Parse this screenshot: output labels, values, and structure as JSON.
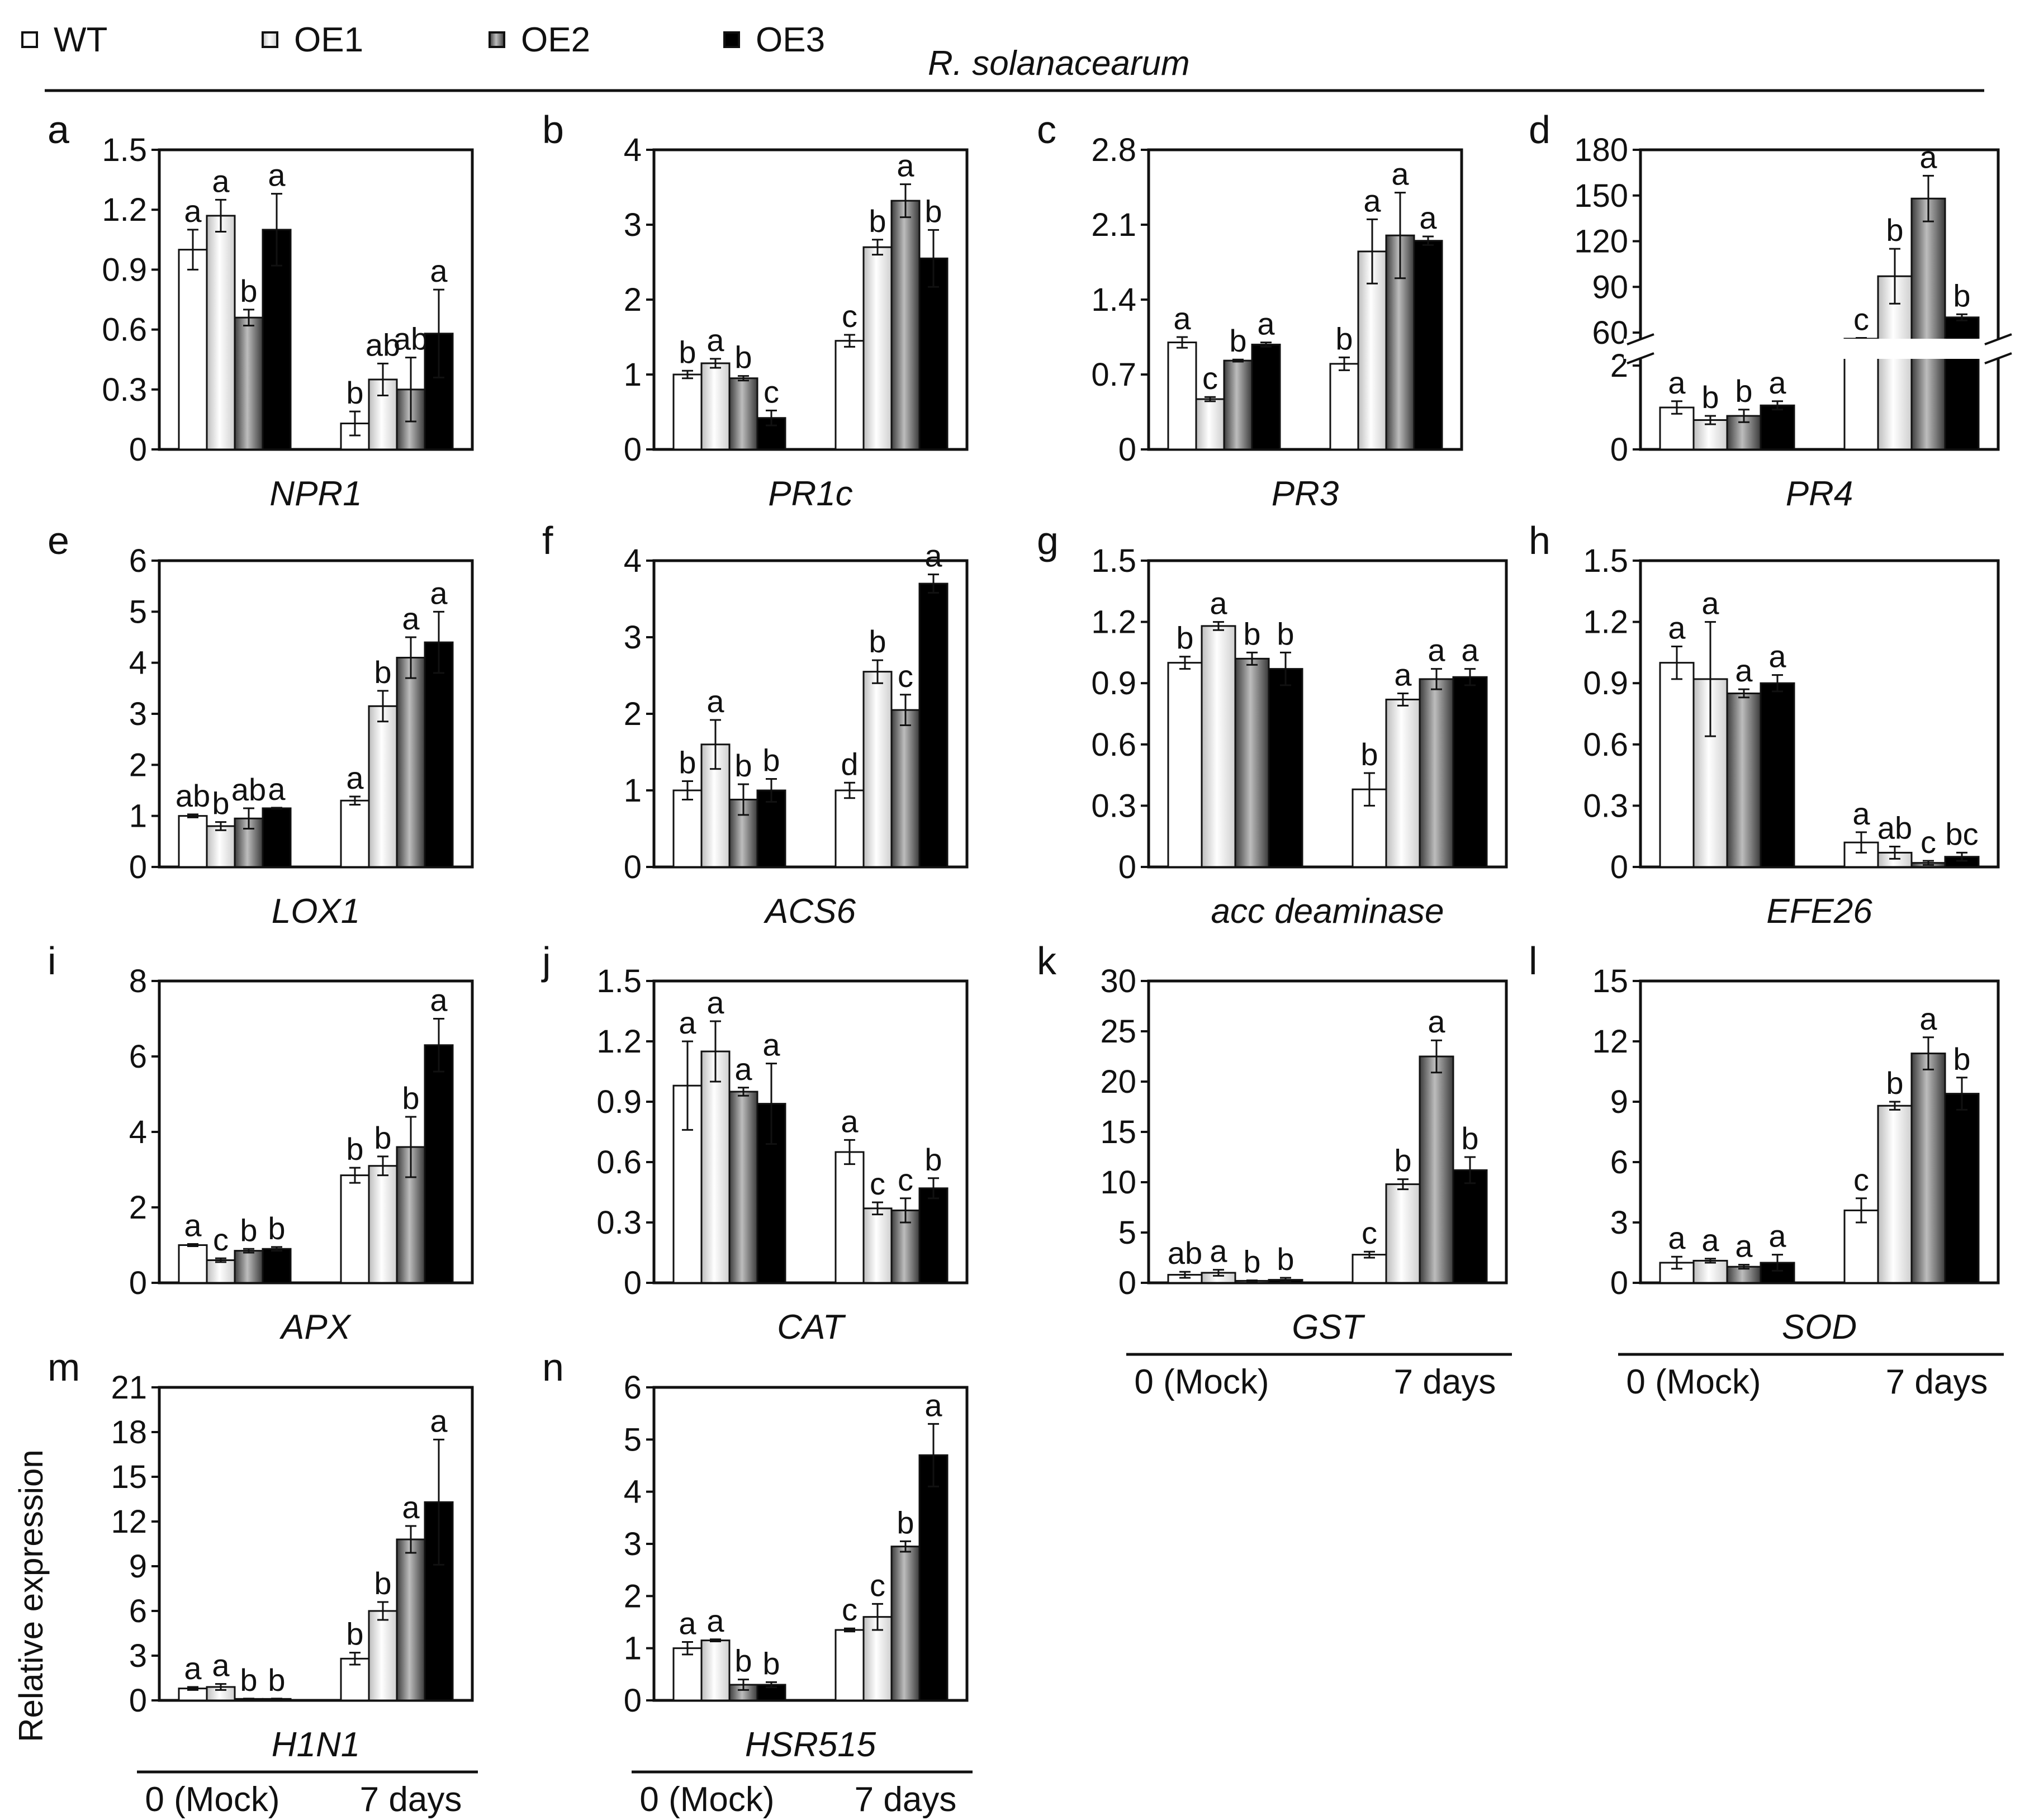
{
  "figure": {
    "pathogen": "R. solanacearum",
    "y_axis_label": "Relative expression",
    "legend": [
      {
        "name": "WT",
        "color": "#ffffff"
      },
      {
        "name": "OE1",
        "color": "#f0f0f0"
      },
      {
        "name": "OE2",
        "color": "#8c8c8c"
      },
      {
        "name": "OE3",
        "color": "#000000"
      }
    ],
    "timepoint_labels": [
      "0 (Mock)",
      "7 days"
    ]
  },
  "chart_data": [
    {
      "type": "bar",
      "panel": "a",
      "gene": "NPR1",
      "categories": [
        "0 (Mock)",
        "7 days"
      ],
      "ylim": [
        0,
        1.5
      ],
      "yticks": [
        "0",
        "0.3",
        "0.6",
        "0.9",
        "1.2",
        "1.5"
      ],
      "show_timepoints": false,
      "series": [
        {
          "name": "WT",
          "values": [
            1.0,
            0.13
          ],
          "errors": [
            0.1,
            0.06
          ],
          "letters": [
            "a",
            "b"
          ]
        },
        {
          "name": "OE1",
          "values": [
            1.17,
            0.35
          ],
          "errors": [
            0.08,
            0.08
          ],
          "letters": [
            "a",
            "ab"
          ]
        },
        {
          "name": "OE2",
          "values": [
            0.66,
            0.3
          ],
          "errors": [
            0.04,
            0.16
          ],
          "letters": [
            "b",
            "ab"
          ]
        },
        {
          "name": "OE3",
          "values": [
            1.1,
            0.58
          ],
          "errors": [
            0.18,
            0.22
          ],
          "letters": [
            "a",
            "a"
          ]
        }
      ]
    },
    {
      "type": "bar",
      "panel": "b",
      "gene": "PR1c",
      "categories": [
        "0 (Mock)",
        "7 days"
      ],
      "ylim": [
        0,
        4
      ],
      "yticks": [
        "0",
        "1",
        "2",
        "3",
        "4"
      ],
      "show_timepoints": false,
      "series": [
        {
          "name": "WT",
          "values": [
            1.0,
            1.45
          ],
          "errors": [
            0.05,
            0.08
          ],
          "letters": [
            "b",
            "c"
          ]
        },
        {
          "name": "OE1",
          "values": [
            1.15,
            2.7
          ],
          "errors": [
            0.06,
            0.1
          ],
          "letters": [
            "a",
            "b"
          ]
        },
        {
          "name": "OE2",
          "values": [
            0.95,
            3.32
          ],
          "errors": [
            0.03,
            0.22
          ],
          "letters": [
            "b",
            "a"
          ]
        },
        {
          "name": "OE3",
          "values": [
            0.42,
            2.55
          ],
          "errors": [
            0.1,
            0.38
          ],
          "letters": [
            "c",
            "b"
          ]
        }
      ]
    },
    {
      "type": "bar",
      "panel": "c",
      "gene": "PR3",
      "categories": [
        "0 (Mock)",
        "7 days"
      ],
      "ylim": [
        0,
        2.8
      ],
      "yticks": [
        "0",
        "0.7",
        "1.4",
        "2.1",
        "2.8"
      ],
      "show_timepoints": false,
      "series": [
        {
          "name": "WT",
          "values": [
            1.0,
            0.8
          ],
          "errors": [
            0.05,
            0.06
          ],
          "letters": [
            "a",
            "b"
          ]
        },
        {
          "name": "OE1",
          "values": [
            0.47,
            1.85
          ],
          "errors": [
            0.02,
            0.3
          ],
          "letters": [
            "c",
            "a"
          ]
        },
        {
          "name": "OE2",
          "values": [
            0.83,
            2.0
          ],
          "errors": [
            0.01,
            0.4
          ],
          "letters": [
            "b",
            "a"
          ]
        },
        {
          "name": "OE3",
          "values": [
            0.98,
            1.95
          ],
          "errors": [
            0.02,
            0.04
          ],
          "letters": [
            "a",
            "a"
          ]
        }
      ]
    },
    {
      "type": "bar",
      "panel": "d",
      "gene": "PR4",
      "categories": [
        "0 (Mock)",
        "7 days"
      ],
      "broken_axis": true,
      "yticks": [
        "0",
        "2",
        "60",
        "90",
        "120",
        "150",
        "180"
      ],
      "show_timepoints": false,
      "series": [
        {
          "name": "WT",
          "values": [
            1.0,
            56
          ],
          "errors": [
            0.15,
            0.5
          ],
          "letters": [
            "a",
            "c"
          ]
        },
        {
          "name": "OE1",
          "values": [
            0.7,
            97
          ],
          "errors": [
            0.1,
            18
          ],
          "letters": [
            "b",
            "b"
          ]
        },
        {
          "name": "OE2",
          "values": [
            0.8,
            148
          ],
          "errors": [
            0.15,
            15
          ],
          "letters": [
            "b",
            "a"
          ]
        },
        {
          "name": "OE3",
          "values": [
            1.05,
            70
          ],
          "errors": [
            0.1,
            2
          ],
          "letters": [
            "a",
            "b"
          ]
        }
      ]
    },
    {
      "type": "bar",
      "panel": "e",
      "gene": "LOX1",
      "categories": [
        "0 (Mock)",
        "7 days"
      ],
      "ylim": [
        0,
        6
      ],
      "yticks": [
        "0",
        "1",
        "2",
        "3",
        "4",
        "5",
        "6"
      ],
      "show_timepoints": false,
      "series": [
        {
          "name": "WT",
          "values": [
            1.0,
            1.3
          ],
          "errors": [
            0.03,
            0.08
          ],
          "letters": [
            "ab",
            "a"
          ]
        },
        {
          "name": "OE1",
          "values": [
            0.8,
            3.15
          ],
          "errors": [
            0.08,
            0.3
          ],
          "letters": [
            "b",
            "b"
          ]
        },
        {
          "name": "OE2",
          "values": [
            0.95,
            4.1
          ],
          "errors": [
            0.2,
            0.4
          ],
          "letters": [
            "ab",
            "a"
          ]
        },
        {
          "name": "OE3",
          "values": [
            1.15,
            4.4
          ],
          "errors": [
            0.01,
            0.6
          ],
          "letters": [
            "a",
            "a"
          ]
        }
      ]
    },
    {
      "type": "bar",
      "panel": "f",
      "gene": "ACS6",
      "categories": [
        "0 (Mock)",
        "7 days"
      ],
      "ylim": [
        0,
        4
      ],
      "yticks": [
        "0",
        "1",
        "2",
        "3",
        "4"
      ],
      "show_timepoints": false,
      "series": [
        {
          "name": "WT",
          "values": [
            1.0,
            1.0
          ],
          "errors": [
            0.12,
            0.1
          ],
          "letters": [
            "b",
            "d"
          ]
        },
        {
          "name": "OE1",
          "values": [
            1.6,
            2.55
          ],
          "errors": [
            0.32,
            0.15
          ],
          "letters": [
            "a",
            "b"
          ]
        },
        {
          "name": "OE2",
          "values": [
            0.88,
            2.05
          ],
          "errors": [
            0.2,
            0.2
          ],
          "letters": [
            "b",
            "c"
          ]
        },
        {
          "name": "OE3",
          "values": [
            1.0,
            3.7
          ],
          "errors": [
            0.15,
            0.12
          ],
          "letters": [
            "b",
            "a"
          ]
        }
      ]
    },
    {
      "type": "bar",
      "panel": "g",
      "gene": "acc deaminase",
      "categories": [
        "0 (Mock)",
        "7 days"
      ],
      "ylim": [
        0,
        1.5
      ],
      "yticks": [
        "0",
        "0.3",
        "0.6",
        "0.9",
        "1.2",
        "1.5"
      ],
      "show_timepoints": false,
      "series": [
        {
          "name": "WT",
          "values": [
            1.0,
            0.38
          ],
          "errors": [
            0.03,
            0.08
          ],
          "letters": [
            "b",
            "b"
          ]
        },
        {
          "name": "OE1",
          "values": [
            1.18,
            0.82
          ],
          "errors": [
            0.02,
            0.03
          ],
          "letters": [
            "a",
            "a"
          ]
        },
        {
          "name": "OE2",
          "values": [
            1.02,
            0.92
          ],
          "errors": [
            0.03,
            0.05
          ],
          "letters": [
            "b",
            "a"
          ]
        },
        {
          "name": "OE3",
          "values": [
            0.97,
            0.93
          ],
          "errors": [
            0.08,
            0.04
          ],
          "letters": [
            "b",
            "a"
          ]
        }
      ]
    },
    {
      "type": "bar",
      "panel": "h",
      "gene": "EFE26",
      "categories": [
        "0 (Mock)",
        "7 days"
      ],
      "ylim": [
        0,
        1.5
      ],
      "yticks": [
        "0",
        "0.3",
        "0.6",
        "0.9",
        "1.2",
        "1.5"
      ],
      "show_timepoints": false,
      "series": [
        {
          "name": "WT",
          "values": [
            1.0,
            0.12
          ],
          "errors": [
            0.08,
            0.05
          ],
          "letters": [
            "a",
            "a"
          ]
        },
        {
          "name": "OE1",
          "values": [
            0.92,
            0.07
          ],
          "errors": [
            0.28,
            0.03
          ],
          "letters": [
            "a",
            "ab"
          ]
        },
        {
          "name": "OE2",
          "values": [
            0.85,
            0.02
          ],
          "errors": [
            0.02,
            0.01
          ],
          "letters": [
            "a",
            "c"
          ]
        },
        {
          "name": "OE3",
          "values": [
            0.9,
            0.05
          ],
          "errors": [
            0.04,
            0.02
          ],
          "letters": [
            "a",
            "bc"
          ]
        }
      ]
    },
    {
      "type": "bar",
      "panel": "i",
      "gene": "APX",
      "categories": [
        "0 (Mock)",
        "7 days"
      ],
      "ylim": [
        0,
        8
      ],
      "yticks": [
        "0",
        "2",
        "4",
        "6",
        "8"
      ],
      "show_timepoints": false,
      "series": [
        {
          "name": "WT",
          "values": [
            1.0,
            2.85
          ],
          "errors": [
            0.03,
            0.2
          ],
          "letters": [
            "a",
            "b"
          ]
        },
        {
          "name": "OE1",
          "values": [
            0.6,
            3.1
          ],
          "errors": [
            0.05,
            0.25
          ],
          "letters": [
            "c",
            "b"
          ]
        },
        {
          "name": "OE2",
          "values": [
            0.85,
            3.6
          ],
          "errors": [
            0.05,
            0.8
          ],
          "letters": [
            "b",
            "b"
          ]
        },
        {
          "name": "OE3",
          "values": [
            0.9,
            6.3
          ],
          "errors": [
            0.05,
            0.7
          ],
          "letters": [
            "b",
            "a"
          ]
        }
      ]
    },
    {
      "type": "bar",
      "panel": "j",
      "gene": "CAT",
      "categories": [
        "0 (Mock)",
        "7 days"
      ],
      "ylim": [
        0,
        1.5
      ],
      "yticks": [
        "0",
        "0.3",
        "0.6",
        "0.9",
        "1.2",
        "1.5"
      ],
      "show_timepoints": false,
      "series": [
        {
          "name": "WT",
          "values": [
            0.98,
            0.65
          ],
          "errors": [
            0.22,
            0.06
          ],
          "letters": [
            "a",
            "a"
          ]
        },
        {
          "name": "OE1",
          "values": [
            1.15,
            0.37
          ],
          "errors": [
            0.15,
            0.03
          ],
          "letters": [
            "a",
            "c"
          ]
        },
        {
          "name": "OE2",
          "values": [
            0.95,
            0.36
          ],
          "errors": [
            0.02,
            0.06
          ],
          "letters": [
            "a",
            "c"
          ]
        },
        {
          "name": "OE3",
          "values": [
            0.89,
            0.47
          ],
          "errors": [
            0.2,
            0.05
          ],
          "letters": [
            "a",
            "b"
          ]
        }
      ]
    },
    {
      "type": "bar",
      "panel": "k",
      "gene": "GST",
      "categories": [
        "0 (Mock)",
        "7 days"
      ],
      "ylim": [
        0,
        30
      ],
      "yticks": [
        "0",
        "5",
        "10",
        "15",
        "20",
        "25",
        "30"
      ],
      "show_timepoints": true,
      "series": [
        {
          "name": "WT",
          "values": [
            0.8,
            2.8
          ],
          "errors": [
            0.3,
            0.3
          ],
          "letters": [
            "ab",
            "c"
          ]
        },
        {
          "name": "OE1",
          "values": [
            1.0,
            9.8
          ],
          "errors": [
            0.3,
            0.5
          ],
          "letters": [
            "a",
            "b"
          ]
        },
        {
          "name": "OE2",
          "values": [
            0.2,
            22.5
          ],
          "errors": [
            0.05,
            1.6
          ],
          "letters": [
            "b",
            "a"
          ]
        },
        {
          "name": "OE3",
          "values": [
            0.3,
            11.2
          ],
          "errors": [
            0.2,
            1.3
          ],
          "letters": [
            "b",
            "b"
          ]
        }
      ]
    },
    {
      "type": "bar",
      "panel": "l",
      "gene": "SOD",
      "categories": [
        "0 (Mock)",
        "7 days"
      ],
      "ylim": [
        0,
        15
      ],
      "yticks": [
        "0",
        "3",
        "6",
        "9",
        "12",
        "15"
      ],
      "show_timepoints": true,
      "series": [
        {
          "name": "WT",
          "values": [
            1.0,
            3.6
          ],
          "errors": [
            0.3,
            0.6
          ],
          "letters": [
            "a",
            "c"
          ]
        },
        {
          "name": "OE1",
          "values": [
            1.1,
            8.8
          ],
          "errors": [
            0.1,
            0.2
          ],
          "letters": [
            "a",
            "b"
          ]
        },
        {
          "name": "OE2",
          "values": [
            0.8,
            11.4
          ],
          "errors": [
            0.1,
            0.8
          ],
          "letters": [
            "a",
            "a"
          ]
        },
        {
          "name": "OE3",
          "values": [
            1.0,
            9.4
          ],
          "errors": [
            0.4,
            0.8
          ],
          "letters": [
            "a",
            "b"
          ]
        }
      ]
    },
    {
      "type": "bar",
      "panel": "m",
      "gene": "H1N1",
      "categories": [
        "0 (Mock)",
        "7 days"
      ],
      "ylim": [
        0,
        21
      ],
      "yticks": [
        "0",
        "3",
        "6",
        "9",
        "12",
        "15",
        "18",
        "21"
      ],
      "show_timepoints": true,
      "series": [
        {
          "name": "WT",
          "values": [
            0.8,
            2.8
          ],
          "errors": [
            0.1,
            0.4
          ],
          "letters": [
            "a",
            "b"
          ]
        },
        {
          "name": "OE1",
          "values": [
            0.9,
            6.0
          ],
          "errors": [
            0.2,
            0.6
          ],
          "letters": [
            "a",
            "b"
          ]
        },
        {
          "name": "OE2",
          "values": [
            0.1,
            10.8
          ],
          "errors": [
            0.02,
            0.9
          ],
          "letters": [
            "b",
            "a"
          ]
        },
        {
          "name": "OE3",
          "values": [
            0.1,
            13.3
          ],
          "errors": [
            0.02,
            4.2
          ],
          "letters": [
            "b",
            "a"
          ]
        }
      ]
    },
    {
      "type": "bar",
      "panel": "n",
      "gene": "HSR515",
      "categories": [
        "0 (Mock)",
        "7 days"
      ],
      "ylim": [
        0,
        6
      ],
      "yticks": [
        "0",
        "1",
        "2",
        "3",
        "4",
        "5",
        "6"
      ],
      "show_timepoints": true,
      "series": [
        {
          "name": "WT",
          "values": [
            1.0,
            1.35
          ],
          "errors": [
            0.12,
            0.03
          ],
          "letters": [
            "a",
            "c"
          ]
        },
        {
          "name": "OE1",
          "values": [
            1.15,
            1.6
          ],
          "errors": [
            0.02,
            0.25
          ],
          "letters": [
            "a",
            "c"
          ]
        },
        {
          "name": "OE2",
          "values": [
            0.3,
            2.95
          ],
          "errors": [
            0.1,
            0.1
          ],
          "letters": [
            "b",
            "b"
          ]
        },
        {
          "name": "OE3",
          "values": [
            0.3,
            4.7
          ],
          "errors": [
            0.05,
            0.6
          ],
          "letters": [
            "b",
            "a"
          ]
        }
      ]
    }
  ]
}
